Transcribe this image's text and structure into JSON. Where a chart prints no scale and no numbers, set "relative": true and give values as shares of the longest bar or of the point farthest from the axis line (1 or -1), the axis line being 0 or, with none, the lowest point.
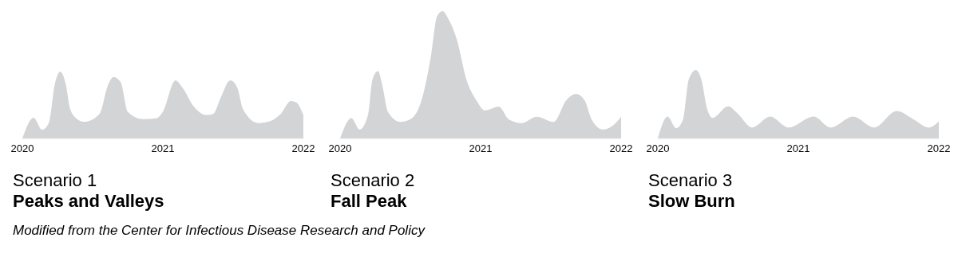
{
  "chart_data": [
    {
      "type": "area",
      "title": "Scenario 1",
      "subtitle": "Peaks and Valleys",
      "relative": true,
      "xlim": [
        2020,
        2022
      ],
      "xticks": [
        2020,
        2021,
        2022
      ],
      "series": [
        {
          "color": "#d3d4d6",
          "x": [
            2020.0,
            2020.08,
            2020.14,
            2020.19,
            2020.23,
            2020.27,
            2020.31,
            2020.34,
            2020.39,
            2020.44,
            2020.55,
            2020.61,
            2020.65,
            2020.7,
            2020.75,
            2020.86,
            2020.95,
            2021.0,
            2021.09,
            2021.14,
            2021.22,
            2021.31,
            2021.36,
            2021.41,
            2021.48,
            2021.53,
            2021.57,
            2021.68,
            2021.75,
            2021.84,
            2021.91,
            2021.95,
            2022.0
          ],
          "values": [
            0,
            0.31,
            0.13,
            0.24,
            0.8,
            1.0,
            0.8,
            0.44,
            0.29,
            0.25,
            0.37,
            0.8,
            0.92,
            0.84,
            0.4,
            0.29,
            0.3,
            0.4,
            0.87,
            0.76,
            0.48,
            0.35,
            0.37,
            0.6,
            0.87,
            0.76,
            0.44,
            0.23,
            0.25,
            0.37,
            0.56,
            0.54,
            0.35
          ]
        }
      ],
      "annotations": [
        "Modified from the Center for Infectious Disease Research and Policy"
      ]
    },
    {
      "type": "area",
      "title": "Scenario 2",
      "subtitle": "Fall Peak",
      "relative": true,
      "xlim": [
        2020,
        2022
      ],
      "xticks": [
        2020,
        2021,
        2022
      ],
      "series": [
        {
          "color": "#d3d4d6",
          "x": [
            2020.0,
            2020.08,
            2020.14,
            2020.2,
            2020.23,
            2020.27,
            2020.3,
            2020.34,
            2020.43,
            2020.5,
            2020.59,
            2020.65,
            2020.69,
            2020.73,
            2020.77,
            2020.83,
            2020.9,
            2020.97,
            2021.03,
            2021.13,
            2021.2,
            2021.29,
            2021.4,
            2021.52,
            2021.61,
            2021.68,
            2021.74,
            2021.79,
            2021.87,
            2021.94,
            2022.0
          ],
          "values": [
            0,
            0.16,
            0.07,
            0.19,
            0.46,
            0.53,
            0.42,
            0.21,
            0.13,
            0.15,
            0.34,
            0.67,
            0.96,
            1.0,
            0.94,
            0.78,
            0.46,
            0.3,
            0.22,
            0.25,
            0.15,
            0.12,
            0.17,
            0.13,
            0.3,
            0.35,
            0.3,
            0.15,
            0.07,
            0.1,
            0.17
          ]
        }
      ]
    },
    {
      "type": "area",
      "title": "Scenario 3",
      "subtitle": "Slow Burn",
      "relative": true,
      "xlim": [
        2020,
        2022
      ],
      "xticks": [
        2020,
        2021,
        2022
      ],
      "series": [
        {
          "color": "#d3d4d6",
          "x": [
            2020.0,
            2020.07,
            2020.13,
            2020.18,
            2020.22,
            2020.27,
            2020.31,
            2020.35,
            2020.39,
            2020.5,
            2020.57,
            2020.67,
            2020.8,
            2020.93,
            2021.11,
            2021.23,
            2021.39,
            2021.54,
            2021.7,
            2021.82,
            2021.93,
            2022.0
          ],
          "values": [
            0,
            0.32,
            0.15,
            0.28,
            0.86,
            1.0,
            0.86,
            0.44,
            0.3,
            0.47,
            0.36,
            0.16,
            0.32,
            0.16,
            0.32,
            0.16,
            0.32,
            0.16,
            0.4,
            0.28,
            0.16,
            0.25
          ]
        }
      ]
    }
  ]
}
